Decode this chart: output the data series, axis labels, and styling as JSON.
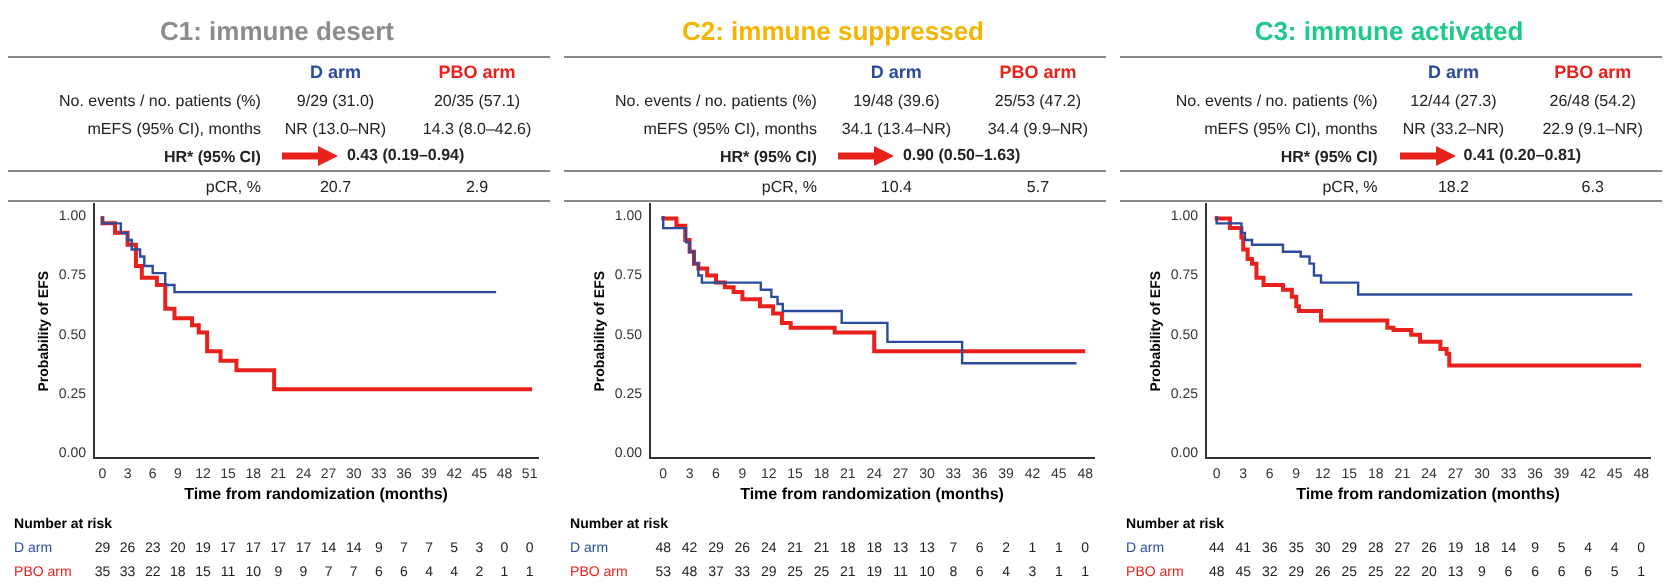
{
  "chart_data": [
    {
      "type": "step",
      "title": "C1: immune desert",
      "xlabel": "Time from randomization (months)",
      "ylabel": "Probability of EFS",
      "xlim": [
        -1,
        52
      ],
      "xticks": [
        0,
        3,
        6,
        9,
        12,
        15,
        18,
        21,
        24,
        27,
        30,
        33,
        36,
        39,
        42,
        45,
        48,
        51
      ],
      "ylim": [
        -0.02,
        1.05
      ],
      "yticks": [
        {
          "value": 0,
          "label": "0.00"
        },
        {
          "value": 0.25,
          "label": "0.25"
        },
        {
          "value": 0.5,
          "label": "0.50"
        },
        {
          "value": 0.75,
          "label": "0.75"
        },
        {
          "value": 1,
          "label": "1.00"
        }
      ],
      "series": [
        {
          "name": "D arm",
          "color": "#2b4c9b",
          "x": [
            0,
            2.2,
            3,
            3.5,
            4.5,
            5,
            6,
            7.5,
            8.6,
            12.8,
            47
          ],
          "values": [
            1,
            0.97,
            0.93,
            0.9,
            0.86,
            0.83,
            0.79,
            0.76,
            0.71,
            0.68,
            0.68
          ]
        },
        {
          "name": "PBO arm",
          "color": "#e8211c",
          "x": [
            0,
            1.5,
            3,
            4,
            4.7,
            6.5,
            7.5,
            8.6,
            10.7,
            11.5,
            12.5,
            14.1,
            16,
            20.5,
            42.5,
            51.3
          ],
          "values": [
            1,
            0.97,
            0.93,
            0.88,
            0.79,
            0.74,
            0.71,
            0.61,
            0.57,
            0.54,
            0.51,
            0.43,
            0.39,
            0.35,
            0.27,
            0.27
          ]
        }
      ],
      "annotations": [
        "No. events / no. patients (%)",
        "9/29 (31.0)",
        "20/35 (57.1)",
        "mEFS (95% CI), months",
        "NR (13.0–NR)",
        "14.3 (8.0–42.6)",
        "HR* (95% CI)",
        "0.43 (0.19–0.94)",
        "pCR, %",
        "20.7",
        "2.9",
        "Number at risk",
        "29 26 23 20 19 17 17 17 17 14 14 9 7 7 5 3 0 0",
        "35 33 22 18 15 11 10 9 9 7 7 6 6 4 4 2 1 1"
      ]
    },
    {
      "type": "step",
      "title": "C2: immune suppressed",
      "xlabel": "Time from randomization (months)",
      "ylabel": "Probability of EFS",
      "xlim": [
        -1.5,
        49
      ],
      "xticks": [
        0,
        3,
        6,
        9,
        12,
        15,
        18,
        21,
        24,
        27,
        30,
        33,
        36,
        39,
        42,
        45,
        48
      ],
      "ylim": [
        -0.02,
        1.05
      ],
      "yticks": [
        {
          "value": 0,
          "label": "0.00"
        },
        {
          "value": 0.25,
          "label": "0.25"
        },
        {
          "value": 0.5,
          "label": "0.50"
        },
        {
          "value": 0.75,
          "label": "0.75"
        },
        {
          "value": 1,
          "label": "1.00"
        }
      ],
      "series": [
        {
          "name": "D arm",
          "color": "#2b4c9b",
          "x": [
            0,
            2.6,
            3,
            3.5,
            4,
            4.4,
            11.1,
            12.3,
            13,
            13.6,
            20.3,
            25.5,
            34,
            36.5,
            47
          ],
          "values": [
            1,
            0.95,
            0.89,
            0.85,
            0.8,
            0.75,
            0.72,
            0.69,
            0.66,
            0.63,
            0.6,
            0.55,
            0.47,
            0.38,
            0.38
          ]
        },
        {
          "name": "PBO arm",
          "color": "#e8211c",
          "x": [
            0,
            1.5,
            2.5,
            3,
            3.5,
            4,
            5,
            6,
            7,
            8,
            9,
            11,
            12.5,
            13.5,
            14.5,
            19.5,
            24,
            34,
            48
          ],
          "values": [
            1,
            0.99,
            0.96,
            0.9,
            0.85,
            0.8,
            0.78,
            0.75,
            0.72,
            0.7,
            0.68,
            0.65,
            0.62,
            0.59,
            0.55,
            0.53,
            0.51,
            0.43,
            0.43
          ]
        }
      ],
      "annotations": [
        "No. events / no. patients (%)",
        "19/48 (39.6)",
        "25/53 (47.2)",
        "mEFS (95% CI), months",
        "34.1 (13.4–NR)",
        "34.4 (9.9–NR)",
        "HR* (95% CI)",
        "0.90 (0.50–1.63)",
        "pCR, %",
        "10.4",
        "5.7",
        "Number at risk",
        "48 42 29 26 24 21 21 18 18 13 13 7 6 2 1 1 0",
        "53 48 37 33 29 25 25 21 19 11 10 8 6 4 3 1 1"
      ]
    },
    {
      "type": "step",
      "title": "C3: immune activated",
      "xlabel": "Time from randomization (months)",
      "ylabel": "Probability of EFS",
      "xlim": [
        -1.2,
        49
      ],
      "xticks": [
        0,
        3,
        6,
        9,
        12,
        15,
        18,
        21,
        24,
        27,
        30,
        33,
        36,
        39,
        42,
        45,
        48
      ],
      "ylim": [
        -0.02,
        1.05
      ],
      "yticks": [
        {
          "value": 0,
          "label": "0.00"
        },
        {
          "value": 0.25,
          "label": "0.25"
        },
        {
          "value": 0.5,
          "label": "0.50"
        },
        {
          "value": 0.75,
          "label": "0.75"
        },
        {
          "value": 1,
          "label": "1.00"
        }
      ],
      "series": [
        {
          "name": "D arm",
          "color": "#2b4c9b",
          "x": [
            0,
            2.8,
            3.2,
            4,
            7.5,
            9.5,
            10.5,
            11,
            11.8,
            16,
            32.7,
            47
          ],
          "values": [
            1,
            0.97,
            0.93,
            0.9,
            0.88,
            0.85,
            0.83,
            0.8,
            0.75,
            0.72,
            0.67,
            0.67
          ]
        },
        {
          "name": "PBO arm",
          "color": "#e8211c",
          "x": [
            0,
            1.5,
            2.8,
            3,
            3.5,
            4,
            4.5,
            5.3,
            7.5,
            8.5,
            9,
            9.3,
            11.8,
            19.3,
            20,
            22,
            23,
            25.3,
            26,
            26.3,
            29.6,
            48
          ],
          "values": [
            1,
            0.99,
            0.95,
            0.91,
            0.86,
            0.82,
            0.8,
            0.74,
            0.71,
            0.69,
            0.66,
            0.62,
            0.6,
            0.56,
            0.53,
            0.52,
            0.5,
            0.47,
            0.44,
            0.42,
            0.37,
            0.37
          ]
        }
      ],
      "annotations": [
        "No. events / no. patients (%)",
        "12/44 (27.3)",
        "26/48 (54.2)",
        "mEFS (95% CI), months",
        "NR (33.2–NR)",
        "22.9 (9.1–NR)",
        "HR* (95% CI)",
        "0.41 (0.20–0.81)",
        "pCR, %",
        "18.2",
        "6.3",
        "Number at risk",
        "44 41 36 35 30 29 28 27 26 19 18 14 9 5 4 4 0",
        "48 45 32 29 26 25 25 22 20 13 9 6 6 6 6 5 1"
      ]
    }
  ]
}
